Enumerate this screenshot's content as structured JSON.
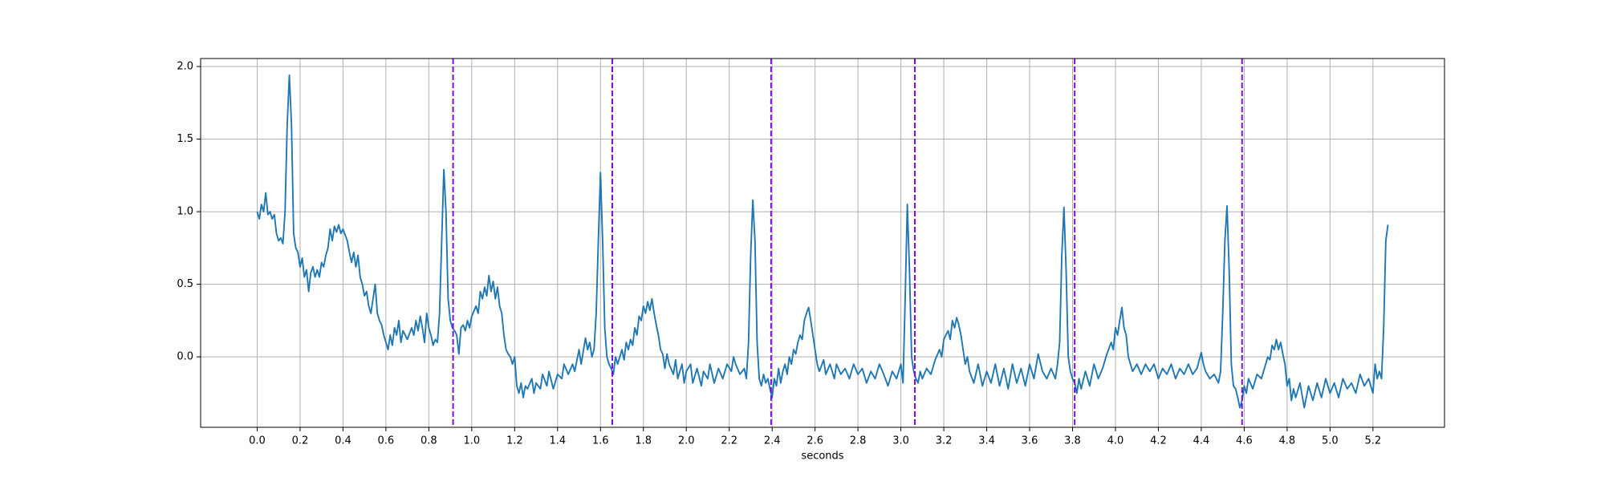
{
  "chart_data": {
    "type": "line",
    "xlabel": "seconds",
    "x": [
      0,
      0.01,
      0.02,
      0.03,
      0.04,
      0.05,
      0.06,
      0.07,
      0.08,
      0.09,
      0.1,
      0.11,
      0.12,
      0.13,
      0.14,
      0.15,
      0.16,
      0.17,
      0.18,
      0.19,
      0.2,
      0.21,
      0.22,
      0.23,
      0.24,
      0.25,
      0.26,
      0.27,
      0.28,
      0.29,
      0.3,
      0.31,
      0.32,
      0.33,
      0.34,
      0.35,
      0.36,
      0.37,
      0.38,
      0.39,
      0.4,
      0.42,
      0.43,
      0.44,
      0.45,
      0.46,
      0.47,
      0.48,
      0.49,
      0.5,
      0.51,
      0.52,
      0.53,
      0.54,
      0.55,
      0.56,
      0.57,
      0.58,
      0.59,
      0.6,
      0.61,
      0.62,
      0.63,
      0.64,
      0.65,
      0.66,
      0.67,
      0.68,
      0.7,
      0.72,
      0.73,
      0.74,
      0.75,
      0.76,
      0.77,
      0.78,
      0.79,
      0.8,
      0.81,
      0.82,
      0.83,
      0.84,
      0.85,
      0.86,
      0.87,
      0.88,
      0.89,
      0.9,
      0.91,
      0.92,
      0.93,
      0.94,
      0.95,
      0.96,
      0.97,
      0.98,
      0.99,
      1,
      1.02,
      1.03,
      1.04,
      1.05,
      1.06,
      1.07,
      1.08,
      1.09,
      1.1,
      1.11,
      1.12,
      1.13,
      1.14,
      1.15,
      1.16,
      1.17,
      1.18,
      1.19,
      1.2,
      1.21,
      1.22,
      1.23,
      1.24,
      1.25,
      1.26,
      1.28,
      1.29,
      1.3,
      1.32,
      1.33,
      1.35,
      1.36,
      1.38,
      1.4,
      1.42,
      1.43,
      1.45,
      1.47,
      1.48,
      1.5,
      1.51,
      1.53,
      1.54,
      1.55,
      1.56,
      1.57,
      1.58,
      1.59,
      1.6,
      1.61,
      1.62,
      1.63,
      1.64,
      1.65,
      1.66,
      1.67,
      1.68,
      1.7,
      1.71,
      1.72,
      1.73,
      1.74,
      1.75,
      1.76,
      1.77,
      1.78,
      1.79,
      1.8,
      1.81,
      1.82,
      1.83,
      1.84,
      1.85,
      1.86,
      1.87,
      1.88,
      1.89,
      1.9,
      1.91,
      1.92,
      1.94,
      1.95,
      1.96,
      1.98,
      1.99,
      2,
      2.02,
      2.03,
      2.05,
      2.07,
      2.08,
      2.1,
      2.11,
      2.13,
      2.15,
      2.17,
      2.19,
      2.21,
      2.22,
      2.23,
      2.25,
      2.27,
      2.28,
      2.29,
      2.3,
      2.31,
      2.32,
      2.33,
      2.34,
      2.35,
      2.36,
      2.37,
      2.38,
      2.39,
      2.4,
      2.41,
      2.42,
      2.43,
      2.44,
      2.45,
      2.46,
      2.47,
      2.48,
      2.49,
      2.5,
      2.51,
      2.52,
      2.53,
      2.54,
      2.55,
      2.56,
      2.57,
      2.58,
      2.59,
      2.6,
      2.61,
      2.62,
      2.64,
      2.65,
      2.67,
      2.69,
      2.7,
      2.72,
      2.74,
      2.76,
      2.78,
      2.8,
      2.82,
      2.84,
      2.86,
      2.88,
      2.9,
      2.92,
      2.94,
      2.96,
      2.98,
      3,
      3.01,
      3.02,
      3.03,
      3.04,
      3.05,
      3.06,
      3.07,
      3.08,
      3.09,
      3.1,
      3.12,
      3.14,
      3.16,
      3.18,
      3.19,
      3.2,
      3.22,
      3.23,
      3.24,
      3.25,
      3.26,
      3.27,
      3.28,
      3.29,
      3.3,
      3.31,
      3.32,
      3.34,
      3.36,
      3.38,
      3.4,
      3.42,
      3.44,
      3.46,
      3.48,
      3.5,
      3.52,
      3.54,
      3.56,
      3.58,
      3.6,
      3.62,
      3.64,
      3.66,
      3.68,
      3.7,
      3.72,
      3.73,
      3.74,
      3.75,
      3.76,
      3.77,
      3.78,
      3.79,
      3.8,
      3.81,
      3.82,
      3.83,
      3.84,
      3.86,
      3.88,
      3.9,
      3.92,
      3.94,
      3.96,
      3.98,
      3.99,
      4,
      4.01,
      4.02,
      4.03,
      4.04,
      4.05,
      4.06,
      4.07,
      4.08,
      4.1,
      4.12,
      4.14,
      4.16,
      4.18,
      4.2,
      4.22,
      4.24,
      4.26,
      4.28,
      4.3,
      4.32,
      4.34,
      4.36,
      4.38,
      4.4,
      4.41,
      4.42,
      4.44,
      4.46,
      4.48,
      4.49,
      4.5,
      4.51,
      4.52,
      4.53,
      4.54,
      4.55,
      4.56,
      4.57,
      4.58,
      4.59,
      4.6,
      4.61,
      4.62,
      4.64,
      4.66,
      4.68,
      4.7,
      4.71,
      4.72,
      4.73,
      4.74,
      4.75,
      4.76,
      4.77,
      4.78,
      4.79,
      4.8,
      4.81,
      4.82,
      4.83,
      4.84,
      4.86,
      4.88,
      4.9,
      4.92,
      4.94,
      4.96,
      4.98,
      5,
      5.02,
      5.04,
      5.06,
      5.08,
      5.1,
      5.12,
      5.14,
      5.16,
      5.18,
      5.2,
      5.21,
      5.22,
      5.23,
      5.24,
      5.25,
      5.26,
      5.27
    ],
    "series": [
      {
        "color": "#1f77b4",
        "values": [
          1,
          0.95,
          1.05,
          1,
          1.13,
          0.98,
          1,
          0.95,
          0.98,
          0.85,
          0.8,
          0.82,
          0.78,
          1,
          1.6,
          1.94,
          1.6,
          0.85,
          0.75,
          0.72,
          0.62,
          0.68,
          0.55,
          0.6,
          0.45,
          0.58,
          0.62,
          0.55,
          0.6,
          0.55,
          0.65,
          0.62,
          0.7,
          0.75,
          0.88,
          0.8,
          0.9,
          0.86,
          0.91,
          0.85,
          0.88,
          0.8,
          0.72,
          0.65,
          0.72,
          0.62,
          0.7,
          0.55,
          0.5,
          0.42,
          0.45,
          0.35,
          0.3,
          0.4,
          0.5,
          0.3,
          0.25,
          0.22,
          0.15,
          0.1,
          0.05,
          0.15,
          0.08,
          0.2,
          0.15,
          0.25,
          0.1,
          0.18,
          0.12,
          0.2,
          0.15,
          0.25,
          0.18,
          0.28,
          0.2,
          0.1,
          0.3,
          0.2,
          0.15,
          0.08,
          0.12,
          0.1,
          0.3,
          0.8,
          1.29,
          1,
          0.4,
          0.25,
          0.2,
          0.18,
          0.15,
          0.02,
          0.2,
          0.22,
          0.18,
          0.25,
          0.2,
          0.28,
          0.35,
          0.3,
          0.45,
          0.4,
          0.48,
          0.42,
          0.56,
          0.45,
          0.52,
          0.4,
          0.48,
          0.35,
          0.3,
          0.15,
          0.05,
          0.02,
          0,
          -0.05,
          0,
          -0.2,
          -0.25,
          -0.18,
          -0.28,
          -0.2,
          -0.22,
          -0.15,
          -0.25,
          -0.18,
          -0.22,
          -0.12,
          -0.2,
          -0.1,
          -0.22,
          -0.12,
          -0.15,
          -0.05,
          -0.12,
          -0.05,
          -0.1,
          0.05,
          -0.05,
          0.13,
          0.05,
          0.1,
          0,
          0.05,
          0.3,
          0.8,
          1.27,
          0.8,
          0.2,
          0,
          -0.05,
          -0.08,
          -0.12,
          0,
          -0.05,
          0.05,
          -0.02,
          0.1,
          0.05,
          0.12,
          0.08,
          0.2,
          0.15,
          0.28,
          0.25,
          0.35,
          0.3,
          0.38,
          0.32,
          0.4,
          0.3,
          0.22,
          0.15,
          0.05,
          0.02,
          -0.08,
          0.02,
          -0.05,
          -0.12,
          -0.02,
          -0.15,
          -0.05,
          -0.18,
          -0.1,
          -0.05,
          -0.18,
          -0.08,
          -0.2,
          -0.1,
          -0.15,
          -0.05,
          -0.18,
          -0.08,
          -0.15,
          -0.05,
          -0.1,
          0,
          -0.05,
          -0.12,
          -0.08,
          -0.15,
          0.1,
          0.7,
          1.08,
          0.8,
          0.1,
          -0.15,
          -0.2,
          -0.12,
          -0.18,
          -0.15,
          -0.22,
          -0.28,
          -0.15,
          -0.2,
          -0.08,
          -0.18,
          -0.1,
          -0.05,
          -0.12,
          0,
          -0.05,
          0.05,
          0.02,
          0.1,
          0.15,
          0.12,
          0.25,
          0.3,
          0.34,
          0.25,
          0.15,
          0.05,
          -0.05,
          -0.1,
          -0.02,
          -0.12,
          -0.05,
          -0.15,
          -0.05,
          -0.12,
          -0.08,
          -0.15,
          -0.05,
          -0.12,
          -0.08,
          -0.18,
          -0.1,
          -0.15,
          -0.05,
          -0.12,
          -0.2,
          -0.1,
          -0.15,
          -0.05,
          -0.18,
          0.4,
          1.05,
          0.6,
          0,
          -0.1,
          -0.15,
          -0.18,
          -0.1,
          -0.15,
          -0.08,
          -0.12,
          -0.02,
          0.05,
          0,
          0.12,
          0.18,
          0.12,
          0.25,
          0.2,
          0.27,
          0.22,
          0.15,
          0.05,
          -0.05,
          0,
          -0.1,
          -0.18,
          -0.05,
          -0.2,
          -0.1,
          -0.18,
          -0.05,
          -0.2,
          -0.08,
          -0.22,
          -0.05,
          -0.18,
          -0.08,
          -0.2,
          -0.05,
          -0.15,
          0.02,
          -0.1,
          -0.15,
          -0.08,
          -0.15,
          -0.05,
          0.1,
          0.7,
          1.03,
          0.6,
          0,
          -0.1,
          -0.15,
          -0.18,
          -0.25,
          -0.15,
          -0.22,
          -0.1,
          -0.2,
          -0.05,
          -0.15,
          -0.08,
          0.02,
          0.1,
          0.05,
          0.2,
          0.15,
          0.25,
          0.34,
          0.2,
          0.15,
          0,
          -0.05,
          -0.1,
          -0.05,
          -0.12,
          -0.05,
          -0.1,
          -0.05,
          -0.15,
          -0.08,
          -0.12,
          -0.05,
          -0.15,
          -0.08,
          -0.12,
          -0.05,
          -0.12,
          -0.08,
          0.03,
          -0.05,
          -0.1,
          -0.15,
          -0.12,
          -0.18,
          -0.1,
          0.3,
          0.8,
          1.04,
          0.6,
          -0.05,
          -0.2,
          -0.22,
          -0.28,
          -0.35,
          -0.3,
          -0.2,
          -0.25,
          -0.15,
          -0.22,
          -0.12,
          -0.15,
          -0.05,
          0,
          -0.02,
          0.08,
          0.05,
          0.12,
          0.05,
          0.1,
          0.02,
          -0.05,
          -0.2,
          -0.15,
          -0.3,
          -0.22,
          -0.28,
          -0.18,
          -0.35,
          -0.2,
          -0.3,
          -0.18,
          -0.28,
          -0.15,
          -0.25,
          -0.18,
          -0.28,
          -0.15,
          -0.22,
          -0.18,
          -0.25,
          -0.12,
          -0.2,
          -0.15,
          -0.25,
          -0.05,
          -0.15,
          -0.1,
          -0.15,
          0.2,
          0.8,
          0.91
        ]
      }
    ],
    "vlines": [
      0.913,
      1.655,
      2.395,
      3.065,
      3.81,
      4.59
    ],
    "vline_color": "#7a00e6",
    "vline_style": "dashed",
    "xlim": [
      -0.2635,
      5.5335
    ],
    "ylim": [
      -0.485,
      2.055
    ],
    "xticks": [
      {
        "value": 0,
        "label": "0.0"
      },
      0.2,
      0.4,
      0.6,
      0.8,
      {
        "value": 1,
        "label": "1.0"
      },
      1.2,
      1.4,
      1.6,
      1.8,
      {
        "value": 2,
        "label": "2.0"
      },
      2.2,
      2.4,
      2.6,
      2.8,
      {
        "value": 3,
        "label": "3.0"
      },
      3.2,
      3.4,
      3.6,
      3.8,
      {
        "value": 4,
        "label": "4.0"
      },
      4.2,
      4.4,
      4.6,
      4.8,
      {
        "value": 5,
        "label": "5.0"
      },
      5.2
    ],
    "yticks": [
      {
        "value": 0,
        "label": "0.0"
      },
      0.5,
      {
        "value": 1,
        "label": "1.0"
      },
      1.5,
      {
        "value": 2,
        "label": "2.0"
      }
    ],
    "grid": true
  }
}
